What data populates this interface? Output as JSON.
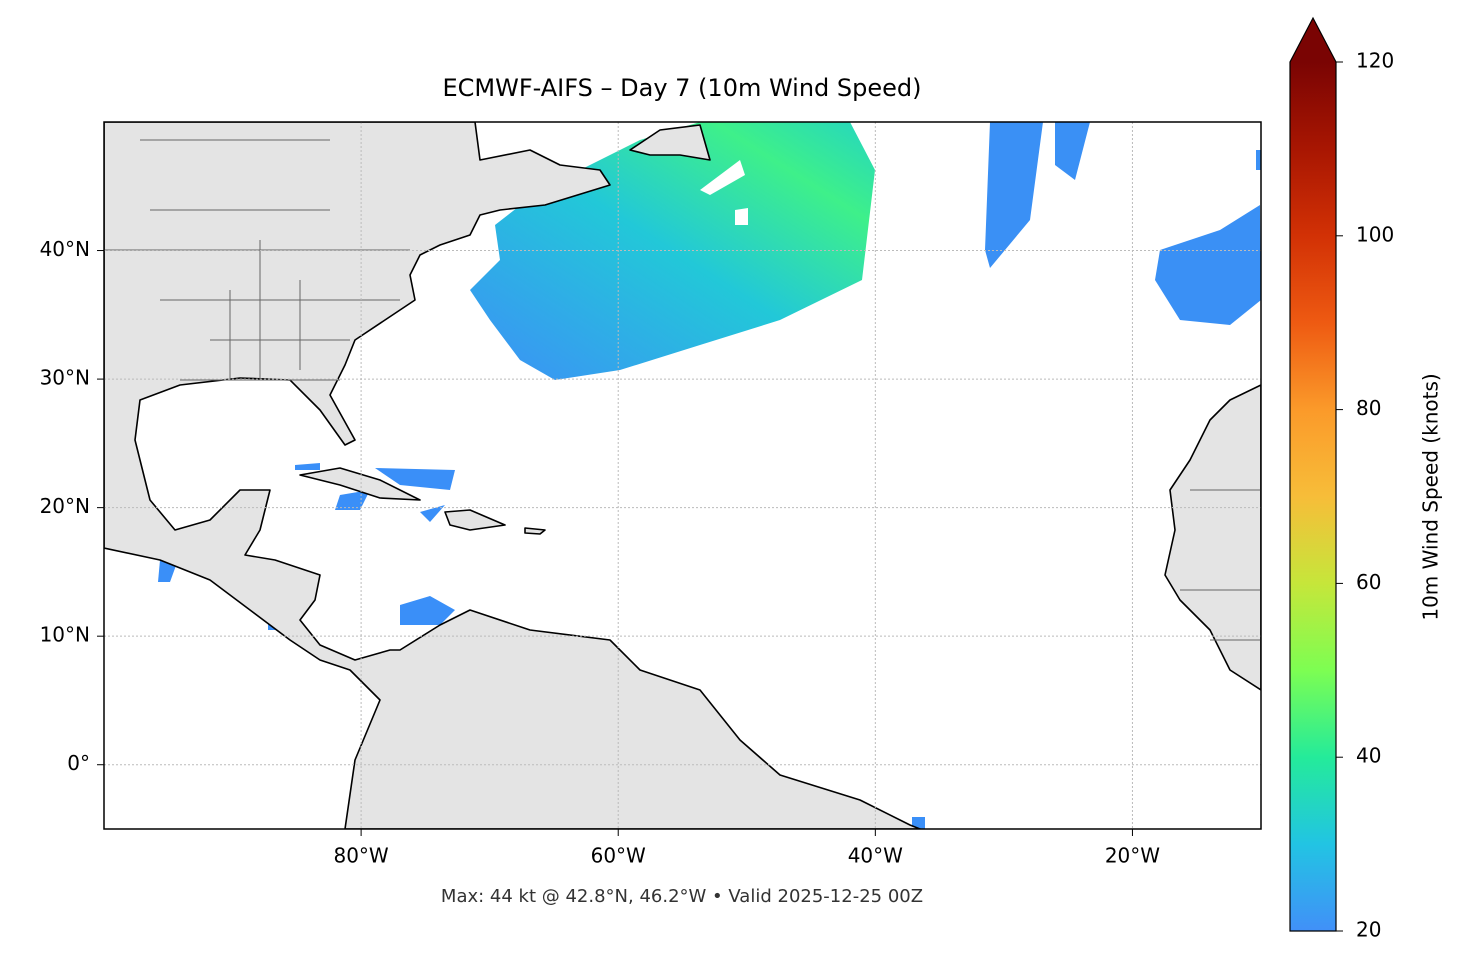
{
  "chart_data": {
    "type": "map",
    "title": "ECMWF-AIFS – Day 7 (10m Wind Speed)",
    "footer": "Max: 44 kt @ 42.8°N, 46.2°W • Valid 2025-12-25 00Z",
    "xlim": [
      -100,
      -10
    ],
    "ylim": [
      -5,
      50
    ],
    "xticks": [
      {
        "value": -80,
        "label": "80°W"
      },
      {
        "value": -60,
        "label": "60°W"
      },
      {
        "value": -40,
        "label": "40°W"
      },
      {
        "value": -20,
        "label": "20°W"
      }
    ],
    "yticks": [
      {
        "value": 0,
        "label": "0°"
      },
      {
        "value": 10,
        "label": "10°N"
      },
      {
        "value": 20,
        "label": "20°N"
      },
      {
        "value": 30,
        "label": "30°N"
      },
      {
        "value": 40,
        "label": "40°N"
      }
    ],
    "grid": true,
    "colorbar": {
      "label": "10m Wind Speed (knots)",
      "clim": [
        20,
        120
      ],
      "ticks": [
        20,
        40,
        60,
        80,
        100,
        120
      ],
      "extend": "max",
      "colors": [
        "#4190f8",
        "#22c4e3",
        "#24eb9a",
        "#7dfe52",
        "#c6e63a",
        "#f7bd39",
        "#fb9a2a",
        "#ee5a12",
        "#d23105",
        "#a81602",
        "#7a0403"
      ]
    }
  }
}
